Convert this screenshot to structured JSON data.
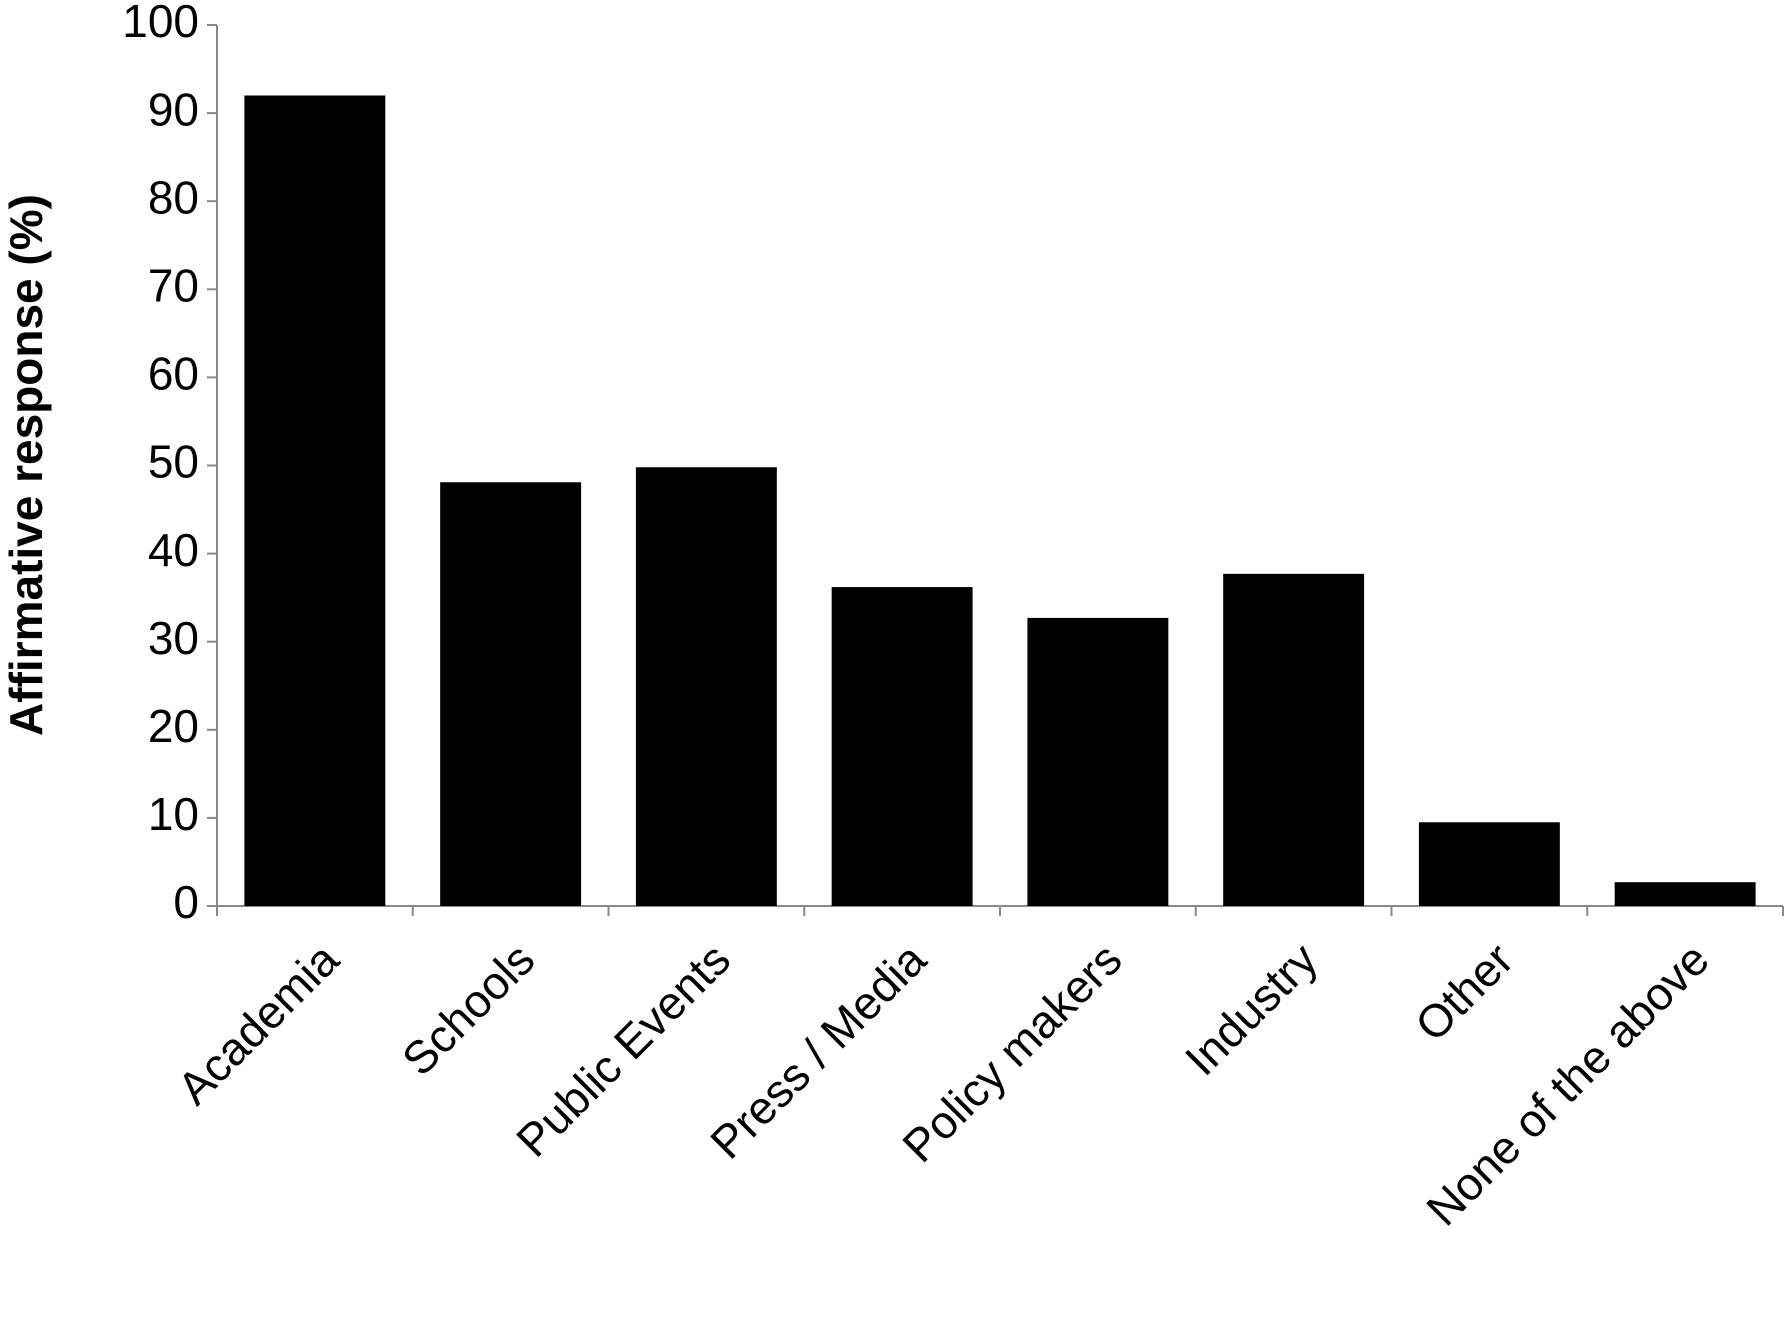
{
  "chart_data": {
    "type": "bar",
    "y_label": "Affirmative response (%)",
    "categories": [
      "Academia",
      "Schools",
      "Public Events",
      "Press / Media",
      "Policy makers",
      "Industry",
      "Other",
      "None of the above"
    ],
    "values": [
      92.0,
      48.1,
      49.8,
      36.2,
      32.7,
      37.7,
      9.5,
      2.7
    ],
    "color": "#000000",
    "ylim": [
      0,
      100
    ],
    "yticks": [
      0,
      10,
      20,
      30,
      40,
      50,
      60,
      70,
      80,
      90,
      100
    ],
    "grid": false
  }
}
